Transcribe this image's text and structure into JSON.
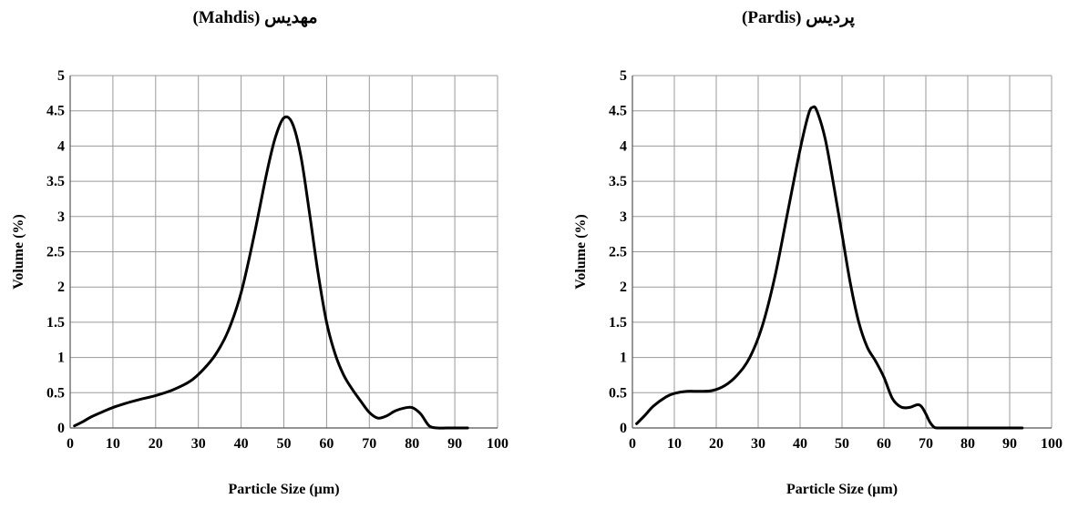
{
  "chart_data": [
    {
      "type": "line",
      "title": "(Mahdis) مهدیس",
      "xlabel": "Particle Size (µm)",
      "ylabel": "Volume (%)",
      "xlim": [
        0,
        100
      ],
      "ylim": [
        0,
        5
      ],
      "xticks": [
        0,
        10,
        20,
        30,
        40,
        50,
        60,
        70,
        80,
        90,
        100
      ],
      "yticks": [
        0,
        0.5,
        1,
        1.5,
        2,
        2.5,
        3,
        3.5,
        4,
        4.5,
        5
      ],
      "grid": true,
      "line_color": "#000000",
      "series": [
        {
          "x": [
            1,
            3,
            5,
            8,
            10,
            13,
            16,
            20,
            24,
            28,
            31,
            34,
            37,
            40,
            43,
            46,
            48,
            50,
            52,
            54,
            56,
            58,
            60,
            62,
            64,
            66,
            68,
            70,
            72,
            74,
            76,
            78,
            80,
            82,
            84,
            86,
            88,
            90,
            93
          ],
          "y": [
            0.03,
            0.09,
            0.16,
            0.24,
            0.29,
            0.35,
            0.4,
            0.46,
            0.54,
            0.66,
            0.82,
            1.04,
            1.38,
            1.92,
            2.72,
            3.62,
            4.12,
            4.4,
            4.32,
            3.85,
            3.05,
            2.2,
            1.5,
            1.05,
            0.75,
            0.55,
            0.38,
            0.22,
            0.14,
            0.17,
            0.24,
            0.28,
            0.29,
            0.2,
            0.03,
            0,
            0,
            0,
            0
          ]
        }
      ]
    },
    {
      "type": "line",
      "title": "(Pardis) پردیس",
      "xlabel": "Particle Size (µm)",
      "ylabel": "Volume (%)",
      "xlim": [
        0,
        100
      ],
      "ylim": [
        0,
        5
      ],
      "xticks": [
        0,
        10,
        20,
        30,
        40,
        50,
        60,
        70,
        80,
        90,
        100
      ],
      "yticks": [
        0,
        0.5,
        1,
        1.5,
        2,
        2.5,
        3,
        3.5,
        4,
        4.5,
        5
      ],
      "grid": true,
      "line_color": "#000000",
      "series": [
        {
          "x": [
            1,
            3,
            5,
            8,
            10,
            13,
            16,
            19,
            22,
            25,
            28,
            31,
            34,
            37,
            40,
            42,
            43,
            44,
            46,
            48,
            50,
            52,
            54,
            56,
            58,
            60,
            62,
            64,
            66,
            68,
            69,
            70,
            71,
            72,
            73,
            75,
            80,
            85,
            90,
            93
          ],
          "y": [
            0.06,
            0.18,
            0.31,
            0.44,
            0.49,
            0.52,
            0.52,
            0.53,
            0.6,
            0.75,
            1.0,
            1.45,
            2.15,
            3.05,
            3.95,
            4.45,
            4.55,
            4.5,
            4.1,
            3.45,
            2.75,
            2.05,
            1.5,
            1.15,
            0.95,
            0.72,
            0.42,
            0.3,
            0.29,
            0.33,
            0.3,
            0.2,
            0.08,
            0.01,
            0,
            0,
            0,
            0,
            0,
            0
          ]
        }
      ]
    }
  ]
}
